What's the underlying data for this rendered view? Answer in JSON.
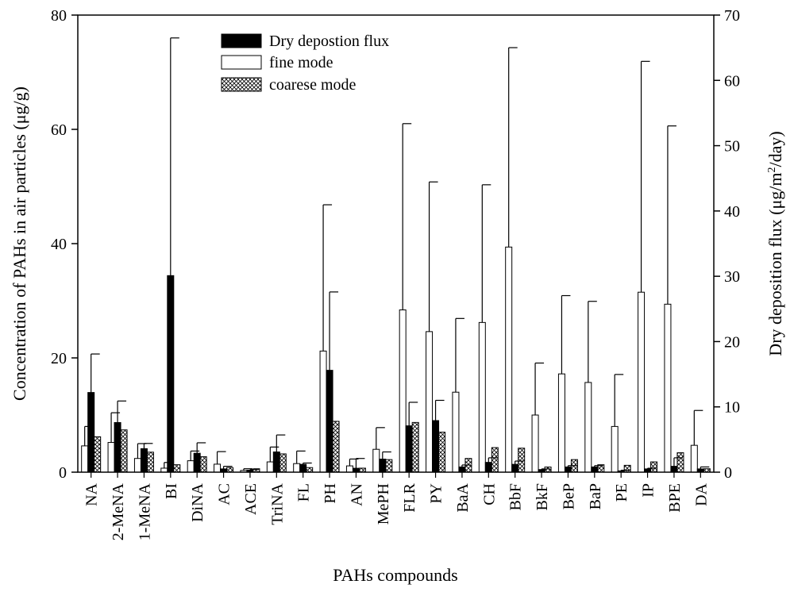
{
  "chart_data": {
    "type": "bar",
    "xlabel": "PAHs compounds",
    "ylabel_left": "Concentration of PAHs in air particles (μg/g)",
    "ylabel_right_prefix": "Dry deposition flux (μg/m",
    "ylabel_right_sup": "2",
    "ylabel_right_suffix": "/day)",
    "ylim_left": [
      0,
      80
    ],
    "yticks_left": [
      0,
      20,
      40,
      60,
      80
    ],
    "ylim_right": [
      0,
      70
    ],
    "yticks_right": [
      0,
      10,
      20,
      30,
      40,
      50,
      60,
      70
    ],
    "categories": [
      "NA",
      "2-MeNA",
      "1-MeNA",
      "BI",
      "DiNA",
      "AC",
      "ACE",
      "TriNA",
      "FL",
      "PH",
      "AN",
      "MePH",
      "FLR",
      "PY",
      "BaA",
      "CH",
      "BbF",
      "BkF",
      "BeP",
      "BaP",
      "PE",
      "IP",
      "BPE",
      "DA"
    ],
    "legend": [
      "Dry depostion flux",
      "fine mode",
      "coarese mode"
    ],
    "series": [
      {
        "name": "fine mode",
        "axis": "left",
        "style": "open",
        "values": [
          4.6,
          5.2,
          2.4,
          0.7,
          2.0,
          1.4,
          0.3,
          1.8,
          1.5,
          21.2,
          1.1,
          4.0,
          28.4,
          24.6,
          14.0,
          26.2,
          39.4,
          10.0,
          17.2,
          15.7,
          8.0,
          31.5,
          29.4,
          4.7
        ],
        "errors": [
          3.4,
          5.2,
          2.6,
          1.0,
          1.7,
          2.2,
          0.3,
          2.6,
          2.2,
          25.6,
          1.2,
          3.8,
          32.6,
          26.2,
          12.9,
          24.1,
          34.9,
          9.1,
          13.7,
          14.2,
          9.1,
          40.4,
          31.2,
          6.1
        ]
      },
      {
        "name": "Dry depostion flux",
        "axis": "right",
        "style": "solid",
        "values": [
          12.2,
          7.6,
          3.6,
          30.1,
          2.9,
          0.5,
          0.3,
          3.1,
          1.2,
          15.6,
          0.6,
          2.0,
          7.1,
          7.9,
          0.8,
          1.5,
          1.2,
          0.4,
          0.8,
          0.8,
          0.2,
          0.5,
          0.9,
          0.5
        ],
        "errors": [
          5.9,
          3.3,
          0.8,
          36.4,
          1.6,
          0.4,
          0.1,
          2.6,
          0.2,
          12.0,
          1.5,
          1.1,
          3.6,
          3.1,
          0.3,
          0.7,
          0.5,
          0.1,
          0.2,
          0.2,
          0.1,
          0.1,
          1.3,
          0.3
        ]
      },
      {
        "name": "coarese mode",
        "axis": "left",
        "style": "hatched",
        "values": [
          6.2,
          7.4,
          3.5,
          1.3,
          2.7,
          0.8,
          0.6,
          3.2,
          0.8,
          8.9,
          0.7,
          2.2,
          8.7,
          7.0,
          2.4,
          4.3,
          4.2,
          0.9,
          2.2,
          1.3,
          1.2,
          1.8,
          3.4,
          0.6
        ]
      }
    ]
  }
}
